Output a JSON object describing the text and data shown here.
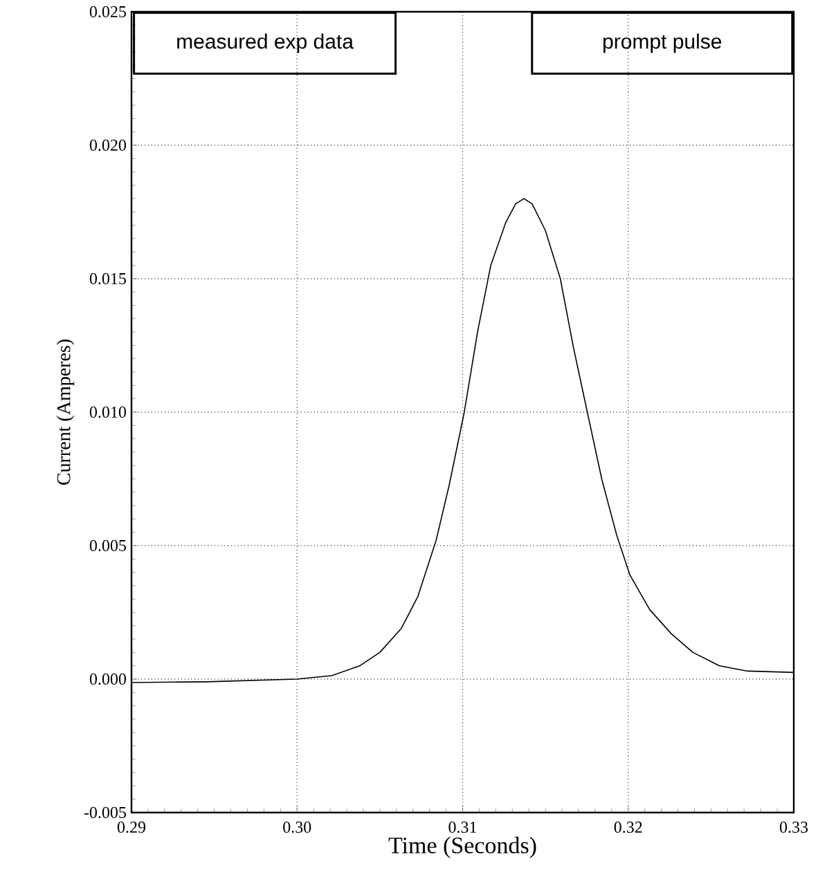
{
  "chart_data": {
    "type": "line",
    "xlabel": "Time  (Seconds)",
    "ylabel": "Current  (Amperes)",
    "annotations": [
      "measured exp data",
      "prompt pulse"
    ],
    "xlim": [
      0.29,
      0.33
    ],
    "ylim": [
      -0.005,
      0.025
    ],
    "xticks": [
      {
        "value": 0.29,
        "label": "0.29"
      },
      {
        "value": 0.3,
        "label": "0.30"
      },
      {
        "value": 0.31,
        "label": "0.31"
      },
      {
        "value": 0.32,
        "label": "0.32"
      },
      {
        "value": 0.33,
        "label": "0.33"
      }
    ],
    "yticks": [
      {
        "value": -0.005,
        "label": "-0.005"
      },
      {
        "value": 0,
        "label": "0.000"
      },
      {
        "value": 0.005,
        "label": "0.005"
      },
      {
        "value": 0.01,
        "label": "0.010"
      },
      {
        "value": 0.015,
        "label": "0.015"
      },
      {
        "value": 0.02,
        "label": "0.020"
      },
      {
        "value": 0.025,
        "label": "0.025"
      }
    ],
    "grid": true,
    "marker": "none",
    "line_style": "solid",
    "series": [
      {
        "color": "#000000",
        "x": [
          0.29,
          0.2946,
          0.3,
          0.3021,
          0.3038,
          0.305,
          0.3063,
          0.3073,
          0.3084,
          0.3092,
          0.3101,
          0.3109,
          0.3117,
          0.3126,
          0.3132,
          0.3137,
          0.3142,
          0.315,
          0.3159,
          0.3167,
          0.3176,
          0.3184,
          0.3193,
          0.3201,
          0.3213,
          0.3226,
          0.3239,
          0.3255,
          0.3272,
          0.33
        ],
        "values": [
          -0.00013,
          -0.0001,
          0.0,
          0.00013,
          0.0005,
          0.001,
          0.0019,
          0.0031,
          0.0052,
          0.0073,
          0.01,
          0.013,
          0.0155,
          0.0171,
          0.0178,
          0.018,
          0.0178,
          0.0168,
          0.015,
          0.0124,
          0.0098,
          0.0075,
          0.0054,
          0.0039,
          0.0026,
          0.0017,
          0.001,
          0.0005,
          0.0003,
          0.00025
        ]
      }
    ]
  }
}
